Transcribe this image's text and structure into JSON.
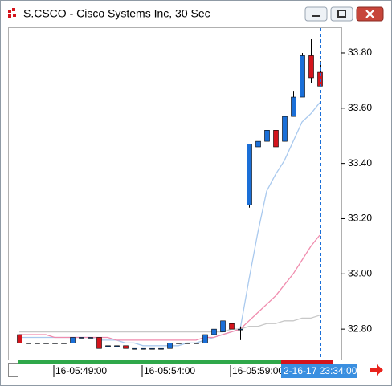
{
  "chart_data": {
    "type": "candlestick",
    "title": "S.CSCO - Cisco Systems Inc, 30 Sec",
    "crosshair_label": "2-16-17 23:34:00",
    "categories": [
      null,
      null,
      null,
      null,
      "16-05:49:00",
      null,
      null,
      null,
      null,
      null,
      null,
      null,
      null,
      null,
      "16-05:54:00",
      null,
      null,
      null,
      null,
      null,
      null,
      null,
      null,
      null,
      "16-05:59:00",
      null,
      null,
      null,
      null,
      null,
      null,
      null,
      null,
      null,
      null
    ],
    "open": [
      32.78,
      32.75,
      32.75,
      32.75,
      32.75,
      32.75,
      32.75,
      32.77,
      32.77,
      32.77,
      32.74,
      32.74,
      32.74,
      32.73,
      32.73,
      32.73,
      32.73,
      32.73,
      32.75,
      32.75,
      32.75,
      32.75,
      32.78,
      32.79,
      32.82,
      32.8,
      33.25,
      33.46,
      33.48,
      33.52,
      33.48,
      33.57,
      33.64,
      33.79,
      33.73
    ],
    "high": [
      32.78,
      32.75,
      32.75,
      32.75,
      32.75,
      32.75,
      32.77,
      32.77,
      32.77,
      32.77,
      32.74,
      32.74,
      32.74,
      32.73,
      32.73,
      32.73,
      32.73,
      32.75,
      32.75,
      32.75,
      32.75,
      32.78,
      32.8,
      32.83,
      32.82,
      32.81,
      33.47,
      33.48,
      33.54,
      33.52,
      33.57,
      33.66,
      33.8,
      33.85,
      33.77
    ],
    "low": [
      32.75,
      32.75,
      32.75,
      32.75,
      32.75,
      32.75,
      32.75,
      32.77,
      32.77,
      32.73,
      32.74,
      32.74,
      32.73,
      32.73,
      32.73,
      32.73,
      32.73,
      32.73,
      32.75,
      32.75,
      32.75,
      32.75,
      32.78,
      32.79,
      32.8,
      32.76,
      33.24,
      33.46,
      33.48,
      33.41,
      33.48,
      33.57,
      33.64,
      33.69,
      33.68
    ],
    "close": [
      32.75,
      32.75,
      32.75,
      32.75,
      32.75,
      32.75,
      32.77,
      32.77,
      32.77,
      32.73,
      32.74,
      32.74,
      32.73,
      32.73,
      32.73,
      32.73,
      32.73,
      32.75,
      32.75,
      32.75,
      32.75,
      32.78,
      32.8,
      32.83,
      32.8,
      32.8,
      33.47,
      33.48,
      33.52,
      33.46,
      33.57,
      33.64,
      33.79,
      33.71,
      33.68
    ],
    "up_color": "#1a6fd8",
    "down_color": "#d4141c",
    "moving_averages": [
      {
        "color": "#a9c9ee",
        "values": [
          32.77,
          32.77,
          32.77,
          32.77,
          32.77,
          32.77,
          32.77,
          32.77,
          32.77,
          32.76,
          32.76,
          32.76,
          32.75,
          32.75,
          32.74,
          32.74,
          32.74,
          32.74,
          32.74,
          32.75,
          32.75,
          32.76,
          32.77,
          32.78,
          32.79,
          32.8,
          32.98,
          33.15,
          33.3,
          33.36,
          33.41,
          33.48,
          33.55,
          33.58,
          33.62
        ]
      },
      {
        "color": "#f08cae",
        "values": [
          32.78,
          32.78,
          32.78,
          32.78,
          32.77,
          32.77,
          32.77,
          32.77,
          32.77,
          32.77,
          32.77,
          32.76,
          32.76,
          32.76,
          32.76,
          32.76,
          32.76,
          32.76,
          32.76,
          32.76,
          32.76,
          32.77,
          32.77,
          32.78,
          32.79,
          32.8,
          32.83,
          32.86,
          32.89,
          32.92,
          32.96,
          33.0,
          33.05,
          33.1,
          33.14
        ]
      },
      {
        "color": "#c8c8c8",
        "values": [
          32.79,
          32.79,
          32.79,
          32.79,
          32.79,
          32.79,
          32.79,
          32.79,
          32.79,
          32.79,
          32.79,
          32.79,
          32.79,
          32.79,
          32.79,
          32.79,
          32.79,
          32.79,
          32.79,
          32.79,
          32.79,
          32.79,
          32.79,
          32.79,
          32.8,
          32.8,
          32.81,
          32.81,
          32.82,
          32.82,
          32.83,
          32.83,
          32.84,
          32.84,
          32.85
        ]
      }
    ],
    "ylim": [
      32.69,
      33.89
    ],
    "yticks": [
      {
        "value": 32.8,
        "label": "32.80"
      },
      {
        "value": 33.0,
        "label": "33.00"
      },
      {
        "value": 33.2,
        "label": "33.20"
      },
      {
        "value": 33.4,
        "label": "33.40"
      },
      {
        "value": 33.6,
        "label": "33.60"
      },
      {
        "value": 33.8,
        "label": "33.80"
      }
    ]
  }
}
